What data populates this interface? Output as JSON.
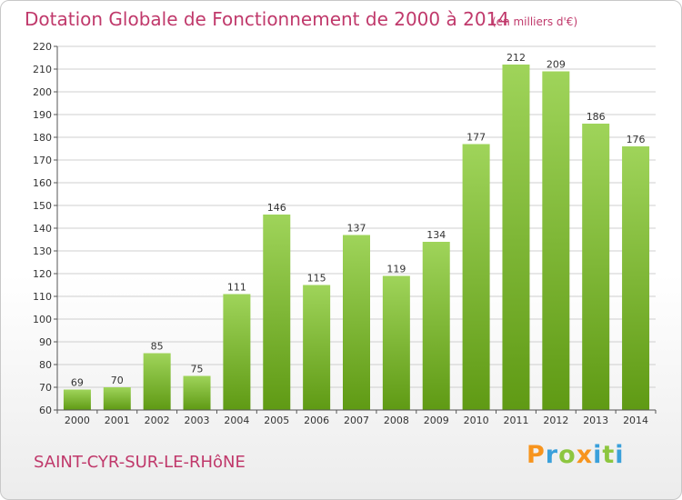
{
  "header": {
    "title": "Dotation Globale de Fonctionnement de 2000 à 2014",
    "subtitle": "(en milliers d'€)"
  },
  "footer": {
    "city": "SAINT-CYR-SUR-LE-RHôNE",
    "logo_letters": [
      "P",
      "r",
      "o",
      "x",
      "i",
      "t",
      "i"
    ],
    "logo_colors": [
      "#f7941d",
      "#3aa0db",
      "#8dc63f",
      "#f7941d",
      "#3aa0db",
      "#8dc63f",
      "#3aa0db"
    ]
  },
  "chart_data": {
    "type": "bar",
    "categories": [
      "2000",
      "2001",
      "2002",
      "2003",
      "2004",
      "2005",
      "2006",
      "2007",
      "2008",
      "2009",
      "2010",
      "2011",
      "2012",
      "2013",
      "2014"
    ],
    "values": [
      69,
      70,
      85,
      75,
      111,
      146,
      115,
      137,
      119,
      134,
      177,
      212,
      209,
      186,
      176
    ],
    "ylim": [
      60,
      220
    ],
    "yticks": [
      60,
      70,
      80,
      90,
      100,
      110,
      120,
      130,
      140,
      150,
      160,
      170,
      180,
      190,
      200,
      210,
      220
    ],
    "grid": true,
    "colors": {
      "bar_top": "#9fd45a",
      "bar_bottom": "#5f9a14",
      "grid": "#cfcfcf",
      "axis": "#555555"
    }
  }
}
